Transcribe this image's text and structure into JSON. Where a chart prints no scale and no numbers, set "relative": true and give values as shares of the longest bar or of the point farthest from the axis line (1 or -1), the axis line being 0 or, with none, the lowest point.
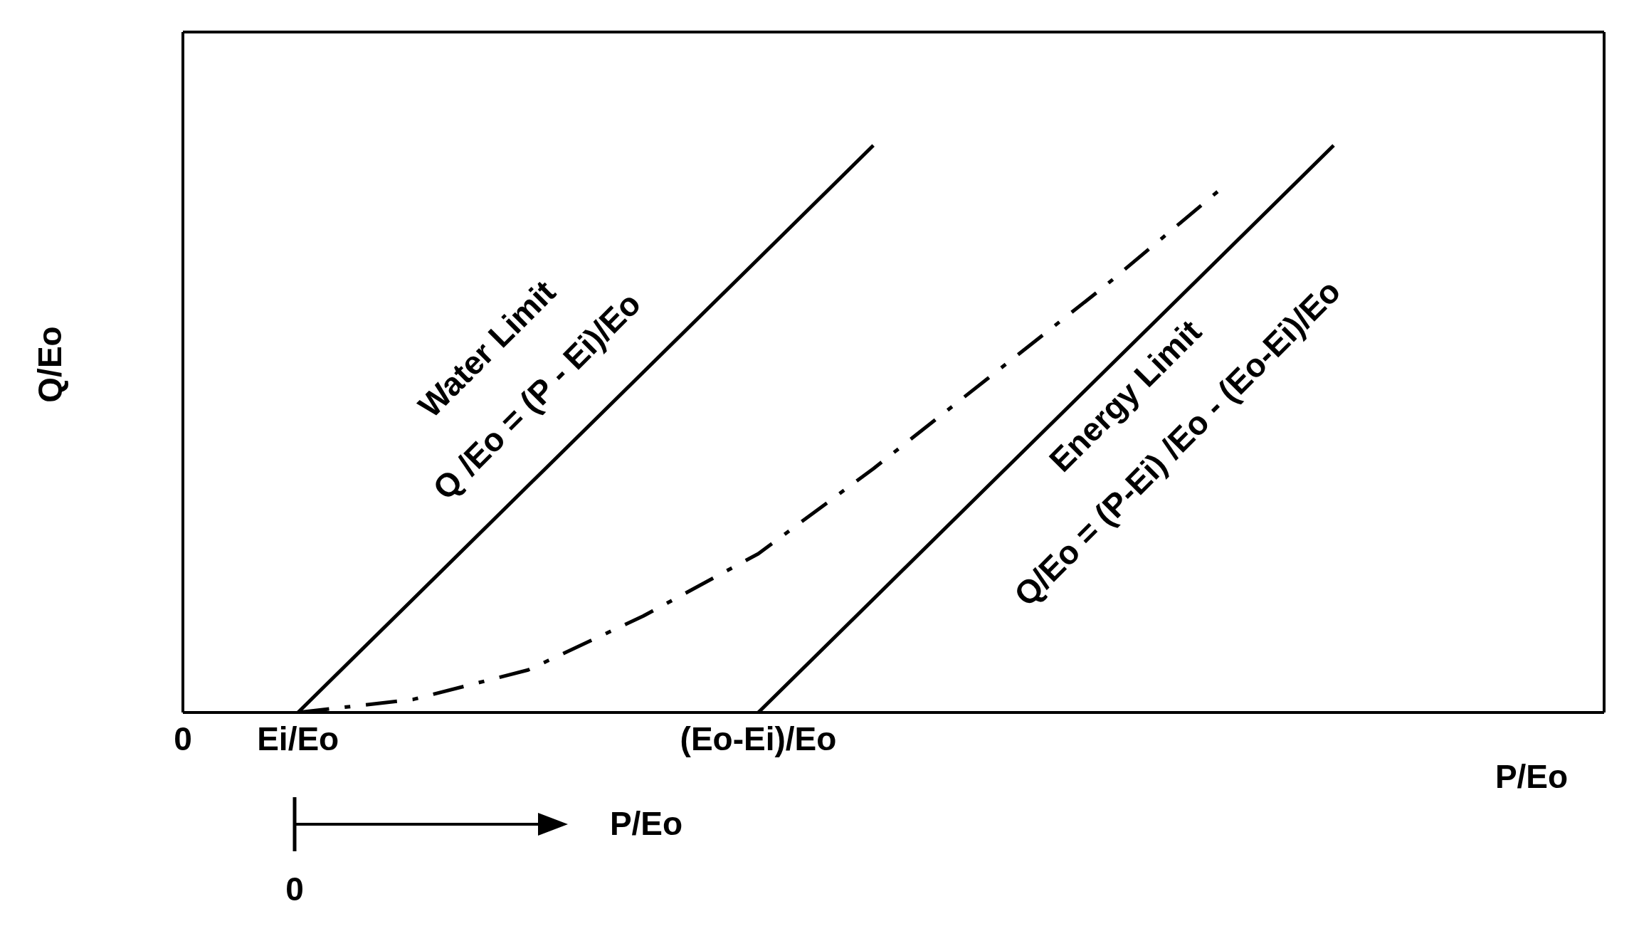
{
  "chart_data": {
    "type": "line",
    "relative": true,
    "xlabel": "P/Eo",
    "ylabel": "Q/Eo",
    "categories": [
      "0",
      "Ei/Eo",
      null,
      null,
      null,
      "(Eo-Ei)/Eo",
      null,
      null,
      null,
      null,
      null,
      null,
      null
    ],
    "series": [
      {
        "color": "#000000",
        "line_style": "solid",
        "values": [
          null,
          0,
          0.2,
          0.4,
          0.6,
          0.8,
          1,
          null,
          null,
          null,
          null,
          null,
          null
        ]
      },
      {
        "color": "#000000",
        "line_style": "dashdot",
        "values": [
          null,
          0,
          0.023,
          0.075,
          0.17,
          0.28,
          0.43,
          0.59,
          0.75,
          0.92,
          null,
          null,
          null
        ]
      },
      {
        "color": "#000000",
        "line_style": "solid",
        "values": [
          null,
          null,
          null,
          null,
          null,
          0,
          0.2,
          0.4,
          0.6,
          0.8,
          1,
          null,
          null
        ]
      }
    ],
    "annotations": [
      "Water Limit",
      "Q /Eo = (P - Ei)/Eo",
      "Energy Limit",
      "Q/Eo = (P-Ei) /Eo - (Eo-Ei)/Eo",
      "P/Eo",
      "0"
    ]
  }
}
